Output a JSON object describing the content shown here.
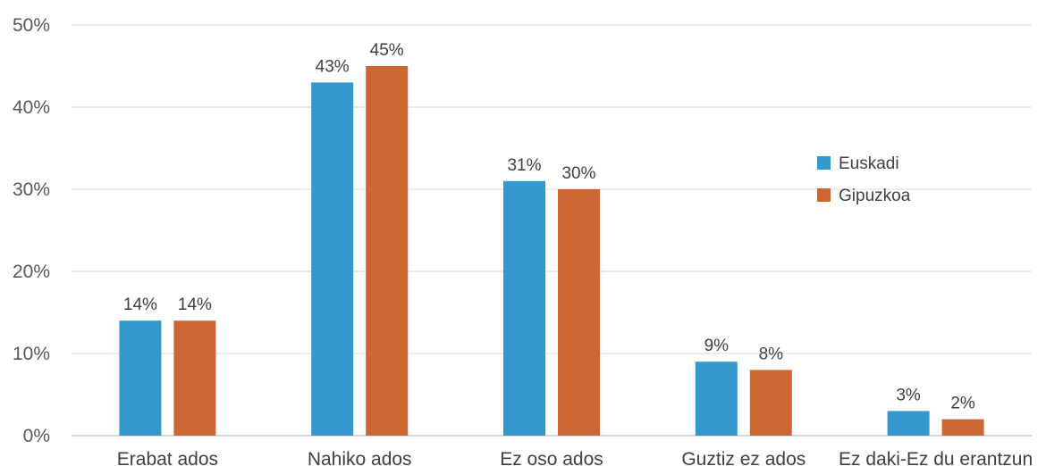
{
  "chart_data": {
    "type": "bar",
    "categories": [
      "Erabat ados",
      "Nahiko ados",
      "Ez oso ados",
      "Guztiz ez ados",
      "Ez daki-Ez du erantzun"
    ],
    "series": [
      {
        "name": "Euskadi",
        "values": [
          14,
          43,
          31,
          9,
          3
        ],
        "labels": [
          "14%",
          "43%",
          "31%",
          "9%",
          "3%"
        ],
        "color": "#3399cc"
      },
      {
        "name": "Gipuzkoa",
        "values": [
          14,
          45,
          30,
          8,
          2
        ],
        "labels": [
          "14%",
          "45%",
          "30%",
          "8%",
          "2%"
        ],
        "color": "#cc6633"
      }
    ],
    "ylim": [
      0,
      50
    ],
    "yticks": [
      0,
      10,
      20,
      30,
      40,
      50
    ],
    "ytick_labels": [
      "0%",
      "10%",
      "20%",
      "30%",
      "40%",
      "50%"
    ],
    "grid": true,
    "legend": "right"
  }
}
